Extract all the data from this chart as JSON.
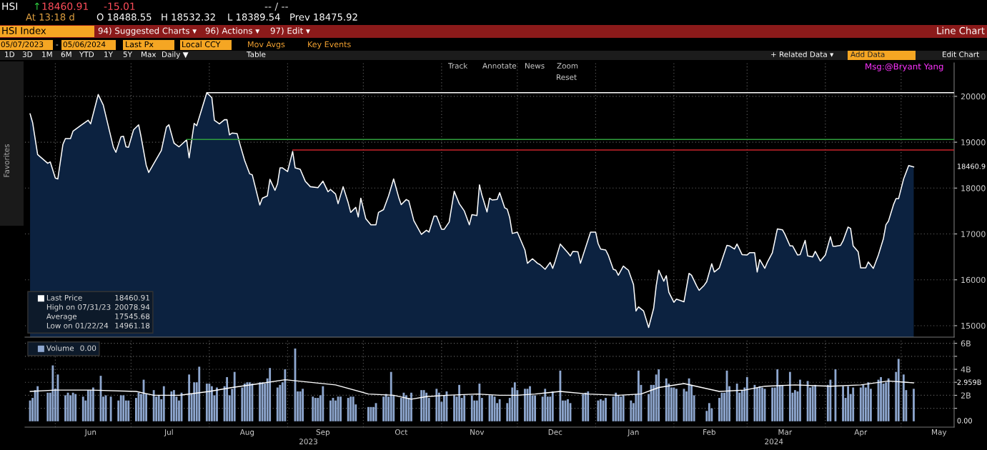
{
  "chart_data": [
    {
      "type": "other",
      "annotations": [
        "HSI",
        "↑",
        "18460.91",
        "-15.01",
        "-- / --",
        "At 13:18 d",
        "O 18488.55",
        "H 18532.32",
        "L 18389.54",
        "Prev 18475.92",
        "HSI Index",
        "94) Suggested Charts ▾",
        "96) Actions ▾",
        "97) Edit ▾",
        "Line Chart",
        "05/07/2023",
        "-",
        "05/06/2024",
        "Last Px",
        "Local CCY",
        "Mov Avgs",
        "Key Events",
        "1D",
        "3D",
        "1M",
        "6M",
        "YTD",
        "1Y",
        "5Y",
        "Max",
        "Daily ▼",
        "Table",
        "+ Related Data ▾",
        "Add Data",
        "Edit Chart",
        "Track",
        "Annotate",
        "News",
        "Zoom",
        "Reset",
        "Msg:@Bryant Yang",
        "Favorites"
      ]
    },
    {
      "type": "area",
      "xlim": [
        "2023-05-20",
        "2024-05-22"
      ],
      "ylim": [
        14750,
        20730
      ],
      "yticks": [
        15000,
        16000,
        17000,
        18000,
        19000,
        20000
      ],
      "tick_labels": "y",
      "grid": true,
      "legend": "bottom left",
      "xticks": [
        {
          "value": "2023-06-01",
          "label": null
        },
        {
          "value": "2023-07-01",
          "label": null
        },
        {
          "value": "2023-08-01",
          "label": null
        },
        {
          "value": "2023-09-01",
          "label": null
        },
        {
          "value": "2023-10-01",
          "label": null
        },
        {
          "value": "2023-11-01",
          "label": null
        },
        {
          "value": "2023-12-01",
          "label": null
        },
        {
          "value": "2024-01-01",
          "label": null
        },
        {
          "value": "2024-02-01",
          "label": null
        },
        {
          "value": "2024-03-01",
          "label": null
        },
        {
          "value": "2024-04-01",
          "label": null
        },
        {
          "value": "2024-05-01",
          "label": null
        }
      ],
      "annotations": [
        "18460.91",
        "High on 07/31/23",
        "20078.94",
        "Average",
        "17545.68",
        "Low on 01/22/24",
        "14961.18",
        "18460.9"
      ],
      "series": [
        {
          "name": "Last Price",
          "type": "area",
          "color": "#ffffff",
          "x": [
            "2023-05-22",
            "2023-05-23",
            "2023-05-25",
            "2023-05-29",
            "2023-05-30",
            "2023-06-01",
            "2023-06-02",
            "2023-06-04",
            "2023-06-05",
            "2023-06-07",
            "2023-06-08",
            "2023-06-11",
            "2023-06-14",
            "2023-06-15",
            "2023-06-18",
            "2023-06-20",
            "2023-06-24",
            "2023-06-25",
            "2023-06-27",
            "2023-06-28",
            "2023-06-29",
            "2023-06-30",
            "2023-07-02",
            "2023-07-04",
            "2023-07-05",
            "2023-07-07",
            "2023-07-08",
            "2023-07-13",
            "2023-07-15",
            "2023-07-16",
            "2023-07-18",
            "2023-07-20",
            "2023-07-23",
            "2023-07-24",
            "2023-07-26",
            "2023-07-27",
            "2023-07-31",
            "2023-08-02",
            "2023-08-03",
            "2023-08-05",
            "2023-08-07",
            "2023-08-08",
            "2023-08-09",
            "2023-08-10",
            "2023-08-12",
            "2023-08-13",
            "2023-08-15",
            "2023-08-17",
            "2023-08-18",
            "2023-08-21",
            "2023-08-22",
            "2023-08-24",
            "2023-08-25",
            "2023-08-27",
            "2023-08-28",
            "2023-08-29",
            "2023-08-30",
            "2023-09-01",
            "2023-09-03",
            "2023-09-04",
            "2023-09-06",
            "2023-09-08",
            "2023-09-10",
            "2023-09-13",
            "2023-09-15",
            "2023-09-17",
            "2023-09-18",
            "2023-09-20",
            "2023-09-21",
            "2023-09-23",
            "2023-09-25",
            "2023-09-26",
            "2023-09-28",
            "2023-09-29",
            "2023-09-30",
            "2023-10-02",
            "2023-10-04",
            "2023-10-06",
            "2023-10-07",
            "2023-10-09",
            "2023-10-11",
            "2023-10-13",
            "2023-10-15",
            "2023-10-16",
            "2023-10-18",
            "2023-10-19",
            "2023-10-21",
            "2023-10-24",
            "2023-10-26",
            "2023-10-27",
            "2023-10-29",
            "2023-10-30",
            "2023-11-01",
            "2023-11-02",
            "2023-11-04",
            "2023-11-06",
            "2023-11-08",
            "2023-11-10",
            "2023-11-12",
            "2023-11-13",
            "2023-11-15",
            "2023-11-16",
            "2023-11-17",
            "2023-11-19",
            "2023-11-20",
            "2023-11-21",
            "2023-11-23",
            "2023-11-24",
            "2023-11-26",
            "2023-11-27",
            "2023-11-28",
            "2023-11-29",
            "2023-12-01",
            "2023-12-04",
            "2023-12-05",
            "2023-12-07",
            "2023-12-09",
            "2023-12-10",
            "2023-12-12",
            "2023-12-14",
            "2023-12-15",
            "2023-12-16",
            "2023-12-18",
            "2023-12-21",
            "2023-12-22",
            "2023-12-23",
            "2023-12-25",
            "2023-12-26",
            "2023-12-30",
            "2024-01-01",
            "2024-01-02",
            "2024-01-03",
            "2024-01-05",
            "2024-01-06",
            "2024-01-08",
            "2024-01-09",
            "2024-01-10",
            "2024-01-12",
            "2024-01-13",
            "2024-01-14",
            "2024-01-16",
            "2024-01-17",
            "2024-01-18",
            "2024-01-20",
            "2024-01-22",
            "2024-01-24",
            "2024-01-25",
            "2024-01-26",
            "2024-01-28",
            "2024-01-29",
            "2024-01-30",
            "2024-02-01",
            "2024-02-02",
            "2024-02-05",
            "2024-02-07",
            "2024-02-08",
            "2024-02-10",
            "2024-02-11",
            "2024-02-13",
            "2024-02-14",
            "2024-02-16",
            "2024-02-17",
            "2024-02-19",
            "2024-02-22",
            "2024-02-23",
            "2024-02-25",
            "2024-02-26",
            "2024-02-28",
            "2024-03-01",
            "2024-03-02",
            "2024-03-04",
            "2024-03-05",
            "2024-03-06",
            "2024-03-08",
            "2024-03-09",
            "2024-03-11",
            "2024-03-13",
            "2024-03-15",
            "2024-03-16",
            "2024-03-18",
            "2024-03-19",
            "2024-03-21",
            "2024-03-22",
            "2024-03-24",
            "2024-03-25",
            "2024-03-27",
            "2024-03-28",
            "2024-03-30",
            "2024-04-01",
            "2024-04-03",
            "2024-04-04",
            "2024-04-05",
            "2024-04-07",
            "2024-04-08",
            "2024-04-10",
            "2024-04-11",
            "2024-04-12",
            "2024-04-14",
            "2024-04-15",
            "2024-04-17",
            "2024-04-18",
            "2024-04-20",
            "2024-04-22",
            "2024-04-24",
            "2024-04-25",
            "2024-04-26",
            "2024-04-28",
            "2024-04-29",
            "2024-04-30",
            "2024-05-02",
            "2024-05-04",
            "2024-05-06"
          ],
          "values": [
            19620,
            19430,
            18730,
            18540,
            18570,
            18220,
            18200,
            18950,
            19080,
            19080,
            19240,
            19360,
            19480,
            19400,
            20040,
            19810,
            18890,
            18780,
            19120,
            19130,
            18900,
            18890,
            19270,
            19380,
            19110,
            18500,
            18340,
            18820,
            19330,
            19380,
            18980,
            18900,
            19050,
            18660,
            19410,
            19360,
            20078.94,
            19970,
            19480,
            19400,
            19490,
            19490,
            19160,
            19200,
            19190,
            18980,
            18600,
            18310,
            18290,
            17630,
            17780,
            17830,
            18190,
            17950,
            18090,
            18440,
            18440,
            18360,
            18800,
            18440,
            18410,
            18150,
            18030,
            18010,
            18150,
            17920,
            17970,
            17870,
            17660,
            18030,
            17680,
            17470,
            17580,
            17370,
            17780,
            17330,
            17200,
            17200,
            17470,
            17530,
            17830,
            18200,
            17800,
            17640,
            17750,
            17720,
            17290,
            16990,
            17080,
            17040,
            17390,
            17390,
            17100,
            17100,
            17260,
            17930,
            17660,
            17500,
            17200,
            17420,
            17400,
            18070,
            17840,
            17480,
            17780,
            17740,
            17750,
            17900,
            17570,
            17540,
            17350,
            17010,
            17040,
            16650,
            16360,
            16460,
            16360,
            16330,
            16230,
            16380,
            16250,
            16410,
            16780,
            16590,
            16520,
            16620,
            16610,
            16360,
            17040,
            17040,
            16790,
            16670,
            16650,
            16540,
            16230,
            16210,
            16100,
            16300,
            16250,
            16210,
            15900,
            15320,
            15410,
            15320,
            14961.18,
            15380,
            15870,
            16210,
            15970,
            16090,
            15730,
            15510,
            15580,
            15520,
            16140,
            16100,
            15870,
            15770,
            15880,
            15960,
            16350,
            16170,
            16260,
            16750,
            16740,
            16670,
            16780,
            16550,
            16540,
            16590,
            16590,
            16170,
            16440,
            16250,
            16380,
            16590,
            17110,
            17090,
            16990,
            16740,
            16740,
            16540,
            16550,
            16860,
            16520,
            16500,
            16620,
            16410,
            16540,
            16940,
            16730,
            16730,
            16750,
            16850,
            17150,
            17120,
            16740,
            16610,
            16260,
            16260,
            16390,
            16250,
            16540,
            16900,
            17200,
            17280,
            17640,
            17770,
            17770,
            18200,
            18490,
            18460.91
          ]
        },
        {
          "type": "line",
          "color": "#ffffff",
          "x": [
            "2023-07-31",
            "2024-05-22"
          ],
          "values": [
            20078.94,
            20078.94
          ]
        },
        {
          "type": "line",
          "color": "#2f9e3c",
          "x": [
            "2023-07-23",
            "2024-05-22"
          ],
          "values": [
            19060,
            19060
          ]
        },
        {
          "type": "line",
          "color": "#c8242b",
          "x": [
            "2023-09-03",
            "2024-05-22"
          ],
          "values": [
            18830,
            18830
          ]
        }
      ]
    },
    {
      "type": "bar",
      "xlim": [
        "2023-05-20",
        "2024-05-22"
      ],
      "ylim": [
        -0.45,
        6.2
      ],
      "grid": true,
      "legend": "top left",
      "yticks": [
        {
          "value": 1,
          "label": null
        },
        {
          "value": 2,
          "label": "2B"
        },
        {
          "value": 3,
          "label": null
        },
        {
          "value": 4,
          "label": "4B"
        },
        {
          "value": 5,
          "label": null
        },
        {
          "value": 6,
          "label": "6B"
        }
      ],
      "xticks": [
        {
          "value": "2023-06-01",
          "label": null
        },
        {
          "value": "2023-06-15",
          "label": "Jun"
        },
        {
          "value": "2023-07-01",
          "label": null
        },
        {
          "value": "2023-07-16",
          "label": "Jul"
        },
        {
          "value": "2023-08-01",
          "label": null
        },
        {
          "value": "2023-08-16",
          "label": "Aug"
        },
        {
          "value": "2023-09-01",
          "label": null
        },
        {
          "value": "2023-09-15",
          "label": "Sep"
        },
        {
          "value": "2023-10-01",
          "label": null
        },
        {
          "value": "2023-10-16",
          "label": "Oct"
        },
        {
          "value": "2023-11-01",
          "label": null
        },
        {
          "value": "2023-11-15",
          "label": "Nov"
        },
        {
          "value": "2023-12-01",
          "label": null
        },
        {
          "value": "2023-12-16",
          "label": "Dec"
        },
        {
          "value": "2024-01-01",
          "label": null
        },
        {
          "value": "2024-01-16",
          "label": "Jan"
        },
        {
          "value": "2024-02-01",
          "label": null
        },
        {
          "value": "2024-02-15",
          "label": "Feb"
        },
        {
          "value": "2024-03-01",
          "label": null
        },
        {
          "value": "2024-03-16",
          "label": "Mar"
        },
        {
          "value": "2024-04-01",
          "label": null
        },
        {
          "value": "2024-04-15",
          "label": "Apr"
        },
        {
          "value": "2024-05-01",
          "label": null
        },
        {
          "value": "2024-05-16",
          "label": "May"
        }
      ],
      "annotations": [
        "0.00",
        "0.00",
        "2.959B",
        "2023",
        "2024"
      ],
      "series": [
        {
          "name": "Volume",
          "type": "bar",
          "color": "#8ea7cf",
          "x": [
            "2023-05-22",
            "2023-05-23",
            "2023-05-24",
            "2023-05-25",
            "2023-05-29",
            "2023-05-30",
            "2023-05-31",
            "2023-06-01",
            "2023-06-02",
            "2023-06-05",
            "2023-06-06",
            "2023-06-07",
            "2023-06-08",
            "2023-06-09",
            "2023-06-12",
            "2023-06-13",
            "2023-06-14",
            "2023-06-15",
            "2023-06-16",
            "2023-06-19",
            "2023-06-20",
            "2023-06-21",
            "2023-06-23",
            "2023-06-26",
            "2023-06-27",
            "2023-06-28",
            "2023-06-29",
            "2023-06-30",
            "2023-07-03",
            "2023-07-04",
            "2023-07-05",
            "2023-07-06",
            "2023-07-07",
            "2023-07-10",
            "2023-07-11",
            "2023-07-12",
            "2023-07-13",
            "2023-07-14",
            "2023-07-17",
            "2023-07-18",
            "2023-07-19",
            "2023-07-20",
            "2023-07-21",
            "2023-07-24",
            "2023-07-25",
            "2023-07-26",
            "2023-07-27",
            "2023-07-28",
            "2023-07-31",
            "2023-08-01",
            "2023-08-02",
            "2023-08-03",
            "2023-08-04",
            "2023-08-07",
            "2023-08-08",
            "2023-08-09",
            "2023-08-10",
            "2023-08-11",
            "2023-08-14",
            "2023-08-15",
            "2023-08-16",
            "2023-08-17",
            "2023-08-18",
            "2023-08-21",
            "2023-08-22",
            "2023-08-23",
            "2023-08-24",
            "2023-08-25",
            "2023-08-28",
            "2023-08-29",
            "2023-08-30",
            "2023-08-31",
            "2023-09-04",
            "2023-09-05",
            "2023-09-06",
            "2023-09-07",
            "2023-09-11",
            "2023-09-12",
            "2023-09-13",
            "2023-09-14",
            "2023-09-15",
            "2023-09-18",
            "2023-09-19",
            "2023-09-20",
            "2023-09-21",
            "2023-09-22",
            "2023-09-25",
            "2023-09-26",
            "2023-09-27",
            "2023-09-28",
            "2023-10-03",
            "2023-10-04",
            "2023-10-05",
            "2023-10-06",
            "2023-10-09",
            "2023-10-10",
            "2023-10-11",
            "2023-10-12",
            "2023-10-13",
            "2023-10-16",
            "2023-10-17",
            "2023-10-18",
            "2023-10-19",
            "2023-10-20",
            "2023-10-24",
            "2023-10-25",
            "2023-10-26",
            "2023-10-27",
            "2023-10-30",
            "2023-10-31",
            "2023-11-01",
            "2023-11-02",
            "2023-11-03",
            "2023-11-06",
            "2023-11-07",
            "2023-11-08",
            "2023-11-09",
            "2023-11-10",
            "2023-11-13",
            "2023-11-14",
            "2023-11-15",
            "2023-11-16",
            "2023-11-17",
            "2023-11-20",
            "2023-11-21",
            "2023-11-22",
            "2023-11-23",
            "2023-11-24",
            "2023-11-27",
            "2023-11-28",
            "2023-11-29",
            "2023-11-30",
            "2023-12-01",
            "2023-12-04",
            "2023-12-05",
            "2023-12-06",
            "2023-12-07",
            "2023-12-08",
            "2023-12-11",
            "2023-12-12",
            "2023-12-13",
            "2023-12-14",
            "2023-12-15",
            "2023-12-18",
            "2023-12-19",
            "2023-12-20",
            "2023-12-21",
            "2023-12-22",
            "2023-12-27",
            "2023-12-28",
            "2023-12-29",
            "2024-01-02",
            "2024-01-03",
            "2024-01-04",
            "2024-01-05",
            "2024-01-08",
            "2024-01-09",
            "2024-01-10",
            "2024-01-11",
            "2024-01-12",
            "2024-01-15",
            "2024-01-16",
            "2024-01-17",
            "2024-01-18",
            "2024-01-19",
            "2024-01-22",
            "2024-01-23",
            "2024-01-24",
            "2024-01-25",
            "2024-01-26",
            "2024-01-29",
            "2024-01-30",
            "2024-01-31",
            "2024-02-01",
            "2024-02-02",
            "2024-02-05",
            "2024-02-06",
            "2024-02-07",
            "2024-02-08",
            "2024-02-09",
            "2024-02-14",
            "2024-02-15",
            "2024-02-16",
            "2024-02-19",
            "2024-02-20",
            "2024-02-21",
            "2024-02-22",
            "2024-02-23",
            "2024-02-26",
            "2024-02-27",
            "2024-02-28",
            "2024-02-29",
            "2024-03-01",
            "2024-03-04",
            "2024-03-05",
            "2024-03-06",
            "2024-03-07",
            "2024-03-08",
            "2024-03-11",
            "2024-03-12",
            "2024-03-13",
            "2024-03-14",
            "2024-03-15",
            "2024-03-18",
            "2024-03-19",
            "2024-03-20",
            "2024-03-21",
            "2024-03-22",
            "2024-03-25",
            "2024-03-26",
            "2024-03-27",
            "2024-03-28",
            "2024-04-02",
            "2024-04-03",
            "2024-04-05",
            "2024-04-08",
            "2024-04-09",
            "2024-04-10",
            "2024-04-11",
            "2024-04-12",
            "2024-04-15",
            "2024-04-16",
            "2024-04-17",
            "2024-04-18",
            "2024-04-19",
            "2024-04-22",
            "2024-04-23",
            "2024-04-24",
            "2024-04-25",
            "2024-04-26",
            "2024-04-29",
            "2024-04-30",
            "2024-05-02",
            "2024-05-03",
            "2024-05-06"
          ],
          "values": [
            1.6,
            1.8,
            2.4,
            2.7,
            2.2,
            2.2,
            4.3,
            2.5,
            3.6,
            2.0,
            2.2,
            2.0,
            2.2,
            2.1,
            1.9,
            1.6,
            2.4,
            2.4,
            2.6,
            3.5,
            1.9,
            2.0,
            1.9,
            1.6,
            2.0,
            2.0,
            1.6,
            1.6,
            1.8,
            2.2,
            2.1,
            3.2,
            2.1,
            2.4,
            1.9,
            2.0,
            1.7,
            2.7,
            2.3,
            2.4,
            1.9,
            1.6,
            2.2,
            3.6,
            2.1,
            3.0,
            3.0,
            4.2,
            2.9,
            2.9,
            2.7,
            2.0,
            2.6,
            2.7,
            3.4,
            2.0,
            2.5,
            3.8,
            2.6,
            2.9,
            3.0,
            3.0,
            2.9,
            3.0,
            3.0,
            2.9,
            3.3,
            4.1,
            2.6,
            2.8,
            3.0,
            4.0,
            5.6,
            2.3,
            2.3,
            2.5,
            1.9,
            1.8,
            1.8,
            2.0,
            2.7,
            1.6,
            1.8,
            1.6,
            1.9,
            1.9,
            1.8,
            1.9,
            1.9,
            1.3,
            1.1,
            1.1,
            1.1,
            1.4,
            1.9,
            2.1,
            1.9,
            3.8,
            2.0,
            1.8,
            2.2,
            2.0,
            1.8,
            2.2,
            2.4,
            2.4,
            2.2,
            1.8,
            2.5,
            2.2,
            1.5,
            2.0,
            2.3,
            2.0,
            1.9,
            2.8,
            1.8,
            2.0,
            2.0,
            1.6,
            1.6,
            2.9,
            1.8,
            2.0,
            2.0,
            1.9,
            1.4,
            1.7,
            1.4,
            1.8,
            2.6,
            3.0,
            2.4,
            2.5,
            2.5,
            2.7,
            2.0,
            2.0,
            1.9,
            2.5,
            1.9,
            1.9,
            2.3,
            3.9,
            1.6,
            1.6,
            1.7,
            1.4,
            2.1,
            2.2,
            2.3,
            1.6,
            1.7,
            1.6,
            1.8,
            1.9,
            2.2,
            2.0,
            1.9,
            2.0,
            1.6,
            1.4,
            2.1,
            3.9,
            2.8,
            2.1,
            2.8,
            2.8,
            3.6,
            4.0,
            3.3,
            2.9,
            2.6,
            2.6,
            2.5,
            2.5,
            2.3,
            3.3,
            2.8,
            2.0,
            0.8,
            1.4,
            1.0,
            1.8,
            2.2,
            2.2,
            3.9,
            2.7,
            2.9,
            2.2,
            2.4,
            2.6,
            3.4,
            2.8,
            2.6,
            2.7,
            2.6,
            2.5,
            2.6,
            2.6,
            4.0,
            2.8,
            2.8,
            3.8,
            2.2,
            2.4,
            2.3,
            3.2,
            3.1,
            2.6,
            2.7,
            2.8,
            2.8,
            3.2,
            4.0,
            2.7,
            1.8,
            2.7,
            2.1,
            2.6,
            2.6,
            2.8,
            2.6,
            3.0,
            2.5,
            3.2,
            3.4,
            2.9,
            3.0,
            3.3,
            3.8,
            4.8,
            3.6,
            2.4,
            2.5
          ]
        },
        {
          "type": "line",
          "color": "#ffffff",
          "x": [
            "2023-05-22",
            "2023-06-01",
            "2023-06-15",
            "2023-07-03",
            "2023-07-10",
            "2023-07-20",
            "2023-08-01",
            "2023-08-10",
            "2023-08-21",
            "2023-08-31",
            "2023-09-05",
            "2023-09-20",
            "2023-10-03",
            "2023-10-13",
            "2023-10-20",
            "2023-10-26",
            "2023-11-03",
            "2023-11-15",
            "2023-11-24",
            "2023-12-01",
            "2023-12-08",
            "2023-12-18",
            "2023-12-29",
            "2024-01-10",
            "2024-01-19",
            "2024-01-26",
            "2024-02-05",
            "2024-02-19",
            "2024-02-29",
            "2024-03-08",
            "2024-03-20",
            "2024-04-03",
            "2024-04-15",
            "2024-04-26",
            "2024-05-06"
          ],
          "values": [
            2.3,
            2.4,
            2.4,
            2.3,
            2.0,
            2.0,
            2.3,
            2.6,
            2.9,
            3.2,
            3.1,
            2.8,
            2.1,
            2.0,
            1.7,
            1.9,
            2.0,
            2.1,
            2.0,
            2.0,
            2.1,
            2.3,
            2.1,
            2.0,
            2.1,
            2.6,
            2.9,
            2.3,
            2.4,
            2.7,
            2.8,
            2.7,
            2.8,
            3.1,
            2.959
          ]
        }
      ]
    }
  ]
}
